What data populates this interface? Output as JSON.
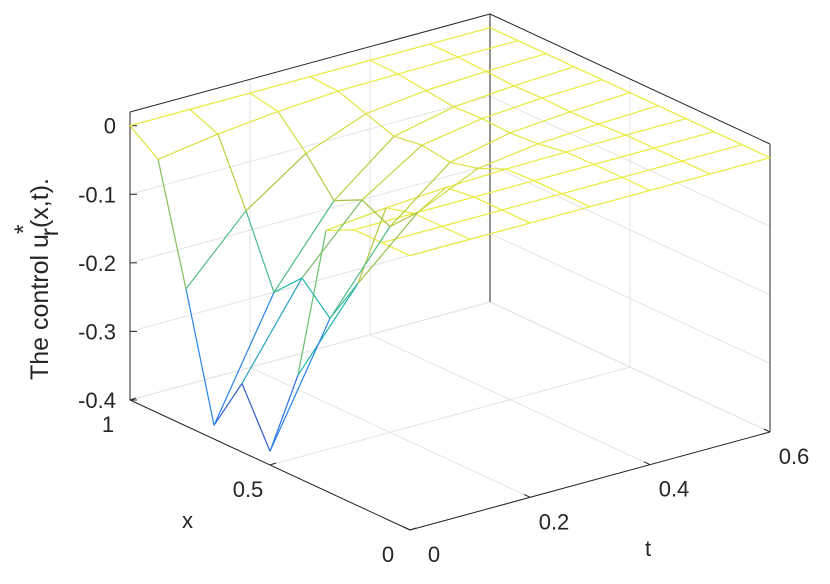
{
  "chart_data": {
    "type": "mesh",
    "zlabel_parts": [
      "The control u",
      "*",
      "r",
      "(x,t)."
    ],
    "xlabel": "x",
    "ylabel": "t",
    "x": [
      0,
      0.1,
      0.2,
      0.3,
      0.4,
      0.5,
      0.6,
      0.7,
      0.8,
      0.9,
      1
    ],
    "t": [
      0,
      0.1,
      0.2,
      0.3,
      0.4,
      0.5,
      0.6
    ],
    "z": [
      [
        0,
        0,
        0,
        0,
        0,
        0,
        0
      ],
      [
        0,
        0,
        0,
        0,
        0,
        0,
        0
      ],
      [
        0,
        0,
        0,
        0,
        0,
        0,
        0
      ],
      [
        -0.02,
        -0.011,
        -0.005,
        -0.002,
        -0.001,
        0,
        0
      ],
      [
        -0.25,
        -0.14,
        -0.06,
        -0.02,
        -0.008,
        -0.003,
        0
      ],
      [
        -0.38,
        -0.21,
        -0.1,
        -0.03,
        -0.011,
        -0.004,
        0
      ],
      [
        -0.3,
        -0.17,
        -0.08,
        -0.024,
        -0.009,
        -0.003,
        0
      ],
      [
        -0.38,
        -0.21,
        -0.1,
        -0.03,
        -0.011,
        -0.004,
        0
      ],
      [
        -0.2,
        -0.11,
        -0.05,
        -0.016,
        -0.006,
        -0.002,
        0
      ],
      [
        -0.03,
        -0.017,
        -0.008,
        -0.002,
        -0.001,
        0,
        0
      ],
      [
        0,
        0,
        0,
        0,
        0,
        0,
        0
      ]
    ],
    "xlim": [
      0,
      1
    ],
    "xticks": [
      0,
      0.5,
      1
    ],
    "tlim": [
      0,
      0.6
    ],
    "tticks": [
      0,
      0.2,
      0.4,
      0.6
    ],
    "zlim": [
      -0.4,
      0.02
    ],
    "zticks": [
      -0.4,
      -0.3,
      -0.2,
      -0.1,
      0
    ],
    "grid": true
  }
}
